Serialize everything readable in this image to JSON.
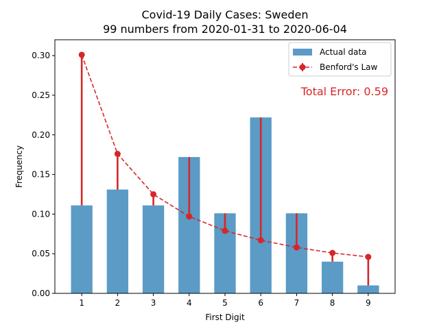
{
  "chart_data": {
    "type": "bar",
    "title": "Covid-19 Daily Cases: Sweden",
    "subtitle": "99 numbers from 2020-01-31 to 2020-06-04",
    "xlabel": "First Digit",
    "ylabel": "Frequency",
    "categories": [
      "1",
      "2",
      "3",
      "4",
      "5",
      "6",
      "7",
      "8",
      "9"
    ],
    "ylim": [
      0,
      0.32
    ],
    "yticks": [
      "0.00",
      "0.05",
      "0.10",
      "0.15",
      "0.20",
      "0.25",
      "0.30"
    ],
    "series": [
      {
        "name": "Actual data",
        "kind": "bar",
        "color": "#5b9bc6",
        "values": [
          0.111,
          0.131,
          0.111,
          0.172,
          0.101,
          0.222,
          0.101,
          0.04,
          0.01
        ]
      },
      {
        "name": "Benford's Law",
        "kind": "line",
        "color": "#d62728",
        "style": "dashed",
        "values": [
          0.301,
          0.176,
          0.125,
          0.097,
          0.079,
          0.067,
          0.058,
          0.051,
          0.046
        ]
      }
    ],
    "annotation": {
      "text": "Total Error: 0.59",
      "color": "#d62728"
    },
    "legend_position": "top-right",
    "grid": false
  }
}
